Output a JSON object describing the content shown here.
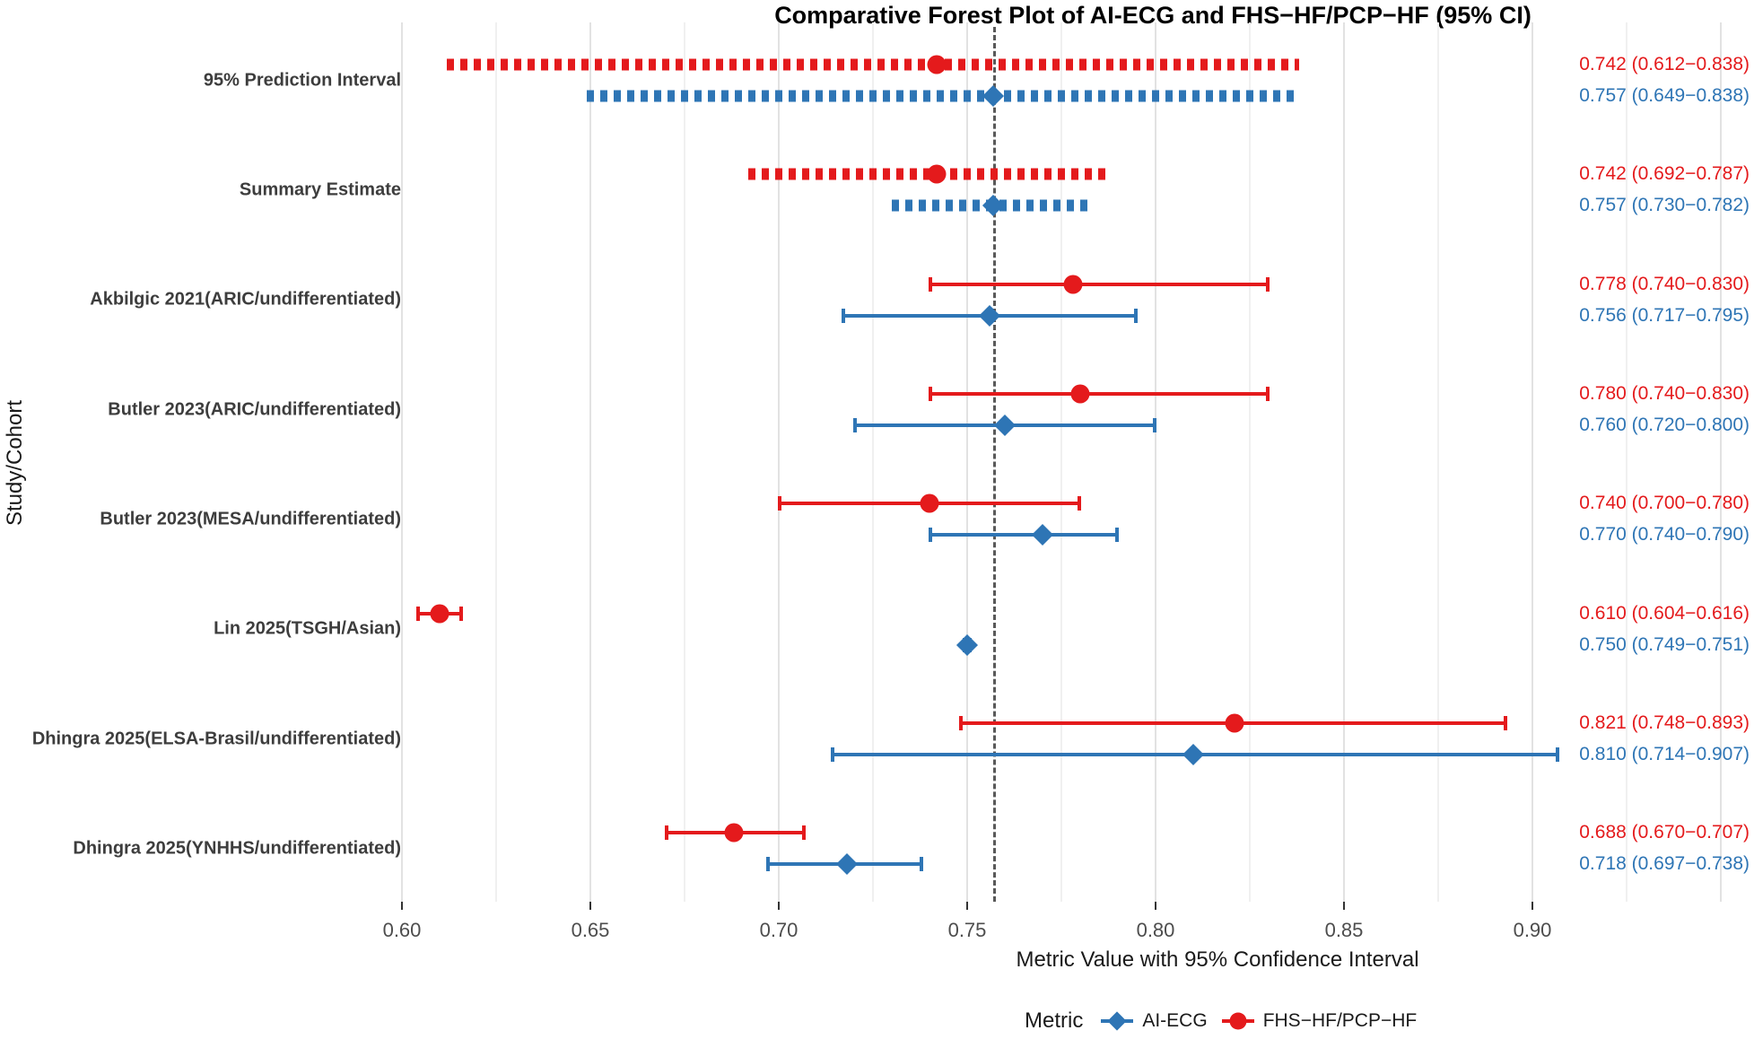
{
  "colors": {
    "fhs": "#e41a1c",
    "ai": "#2e75b5",
    "reference_line": "#595959",
    "grid_major": "#e2e2e2",
    "grid_minor": "#f0f0f0",
    "study_label_text": "#3d3d3d",
    "axis_text": "#4d4d4d"
  },
  "chart_data": {
    "type": "forest",
    "title": "Comparative Forest Plot of AI-ECG and FHS−HF/PCP−HF (95% CI)",
    "xlabel": "Metric Value with 95% Confidence Interval",
    "ylabel": "Study/Cohort",
    "xlim": [
      0.593,
      0.959
    ],
    "x_ticks": [
      0.6,
      0.65,
      0.7,
      0.75,
      0.8,
      0.85,
      0.9
    ],
    "x_tick_labels": [
      "0.60",
      "0.65",
      "0.70",
      "0.75",
      "0.80",
      "0.85",
      "0.90"
    ],
    "grid": {
      "major_step": 0.05,
      "minor_step": 0.025,
      "major_from": 0.6,
      "major_to": 0.95
    },
    "reference_line_x": 0.757,
    "legend": {
      "title": "Metric",
      "position": "bottom",
      "entries": [
        {
          "label": "AI-ECG",
          "marker": "diamond",
          "series": "ai"
        },
        {
          "label": "FHS−HF/PCP−HF",
          "marker": "circle",
          "series": "fhs"
        }
      ]
    },
    "rows": [
      {
        "label": "95% Prediction Interval",
        "style": "dotted",
        "fhs": {
          "est": 0.742,
          "lo": 0.612,
          "hi": 0.838,
          "text": "0.742 (0.612−0.838)"
        },
        "ai": {
          "est": 0.757,
          "lo": 0.649,
          "hi": 0.838,
          "text": "0.757 (0.649−0.838)"
        }
      },
      {
        "label": "Summary Estimate",
        "style": "dotted",
        "fhs": {
          "est": 0.742,
          "lo": 0.692,
          "hi": 0.787,
          "text": "0.742 (0.692−0.787)"
        },
        "ai": {
          "est": 0.757,
          "lo": 0.73,
          "hi": 0.782,
          "text": "0.757 (0.730−0.782)"
        }
      },
      {
        "label": "Akbilgic 2021(ARIC/undifferentiated)",
        "style": "solid",
        "fhs": {
          "est": 0.778,
          "lo": 0.74,
          "hi": 0.83,
          "text": "0.778 (0.740−0.830)"
        },
        "ai": {
          "est": 0.756,
          "lo": 0.717,
          "hi": 0.795,
          "text": "0.756 (0.717−0.795)"
        }
      },
      {
        "label": "Butler 2023(ARIC/undifferentiated)",
        "style": "solid",
        "fhs": {
          "est": 0.78,
          "lo": 0.74,
          "hi": 0.83,
          "text": "0.780 (0.740−0.830)"
        },
        "ai": {
          "est": 0.76,
          "lo": 0.72,
          "hi": 0.8,
          "text": "0.760 (0.720−0.800)"
        }
      },
      {
        "label": "Butler 2023(MESA/undifferentiated)",
        "style": "solid",
        "fhs": {
          "est": 0.74,
          "lo": 0.7,
          "hi": 0.78,
          "text": "0.740 (0.700−0.780)"
        },
        "ai": {
          "est": 0.77,
          "lo": 0.74,
          "hi": 0.79,
          "text": "0.770 (0.740−0.790)"
        }
      },
      {
        "label": "Lin 2025(TSGH/Asian)",
        "style": "solid",
        "fhs": {
          "est": 0.61,
          "lo": 0.604,
          "hi": 0.616,
          "text": "0.610 (0.604−0.616)"
        },
        "ai": {
          "est": 0.75,
          "lo": 0.749,
          "hi": 0.751,
          "text": "0.750 (0.749−0.751)"
        }
      },
      {
        "label": "Dhingra 2025(ELSA-Brasil/undifferentiated)",
        "style": "solid",
        "fhs": {
          "est": 0.821,
          "lo": 0.748,
          "hi": 0.893,
          "text": "0.821 (0.748−0.893)"
        },
        "ai": {
          "est": 0.81,
          "lo": 0.714,
          "hi": 0.907,
          "text": "0.810 (0.714−0.907)"
        }
      },
      {
        "label": "Dhingra 2025(YNHHS/undifferentiated)",
        "style": "solid",
        "fhs": {
          "est": 0.688,
          "lo": 0.67,
          "hi": 0.707,
          "text": "0.688 (0.670−0.707)"
        },
        "ai": {
          "est": 0.718,
          "lo": 0.697,
          "hi": 0.738,
          "text": "0.718 (0.697−0.738)"
        }
      }
    ]
  }
}
